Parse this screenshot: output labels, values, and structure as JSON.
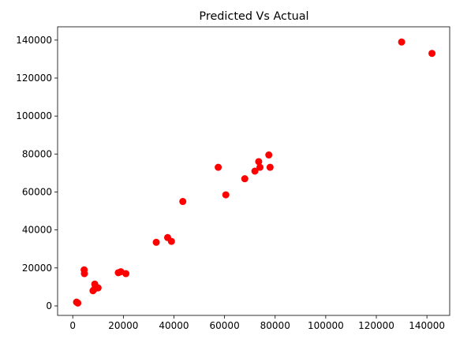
{
  "chart_data": {
    "type": "scatter",
    "title": "Predicted Vs Actual",
    "xlabel": "",
    "ylabel": "",
    "xlim": [
      -6000,
      149000
    ],
    "ylim": [
      -5000,
      147000
    ],
    "xticks": [
      0,
      20000,
      40000,
      60000,
      80000,
      100000,
      120000,
      140000
    ],
    "xtick_labels": [
      "0",
      "20000",
      "40000",
      "60000",
      "80000",
      "100000",
      "120000",
      "140000"
    ],
    "yticks": [
      0,
      20000,
      40000,
      60000,
      80000,
      100000,
      120000,
      140000
    ],
    "ytick_labels": [
      "0",
      "20000",
      "40000",
      "60000",
      "80000",
      "100000",
      "120000",
      "140000"
    ],
    "grid": false,
    "marker_color": "#ff0000",
    "series": [
      {
        "x": [
          1500,
          2000,
          4500,
          4600,
          8000,
          8500,
          8700,
          10000,
          18000,
          19000,
          21000,
          33000,
          37500,
          39000,
          43500,
          57500,
          60500,
          68000,
          72000,
          73500,
          74000,
          77500,
          78000,
          130000,
          142000
        ],
        "y": [
          2000,
          1500,
          19000,
          17000,
          8000,
          8800,
          11500,
          9500,
          17500,
          18000,
          17000,
          33500,
          36000,
          34000,
          55000,
          73000,
          58500,
          67000,
          71000,
          76000,
          73000,
          79500,
          73000,
          139000,
          133000
        ]
      }
    ]
  }
}
